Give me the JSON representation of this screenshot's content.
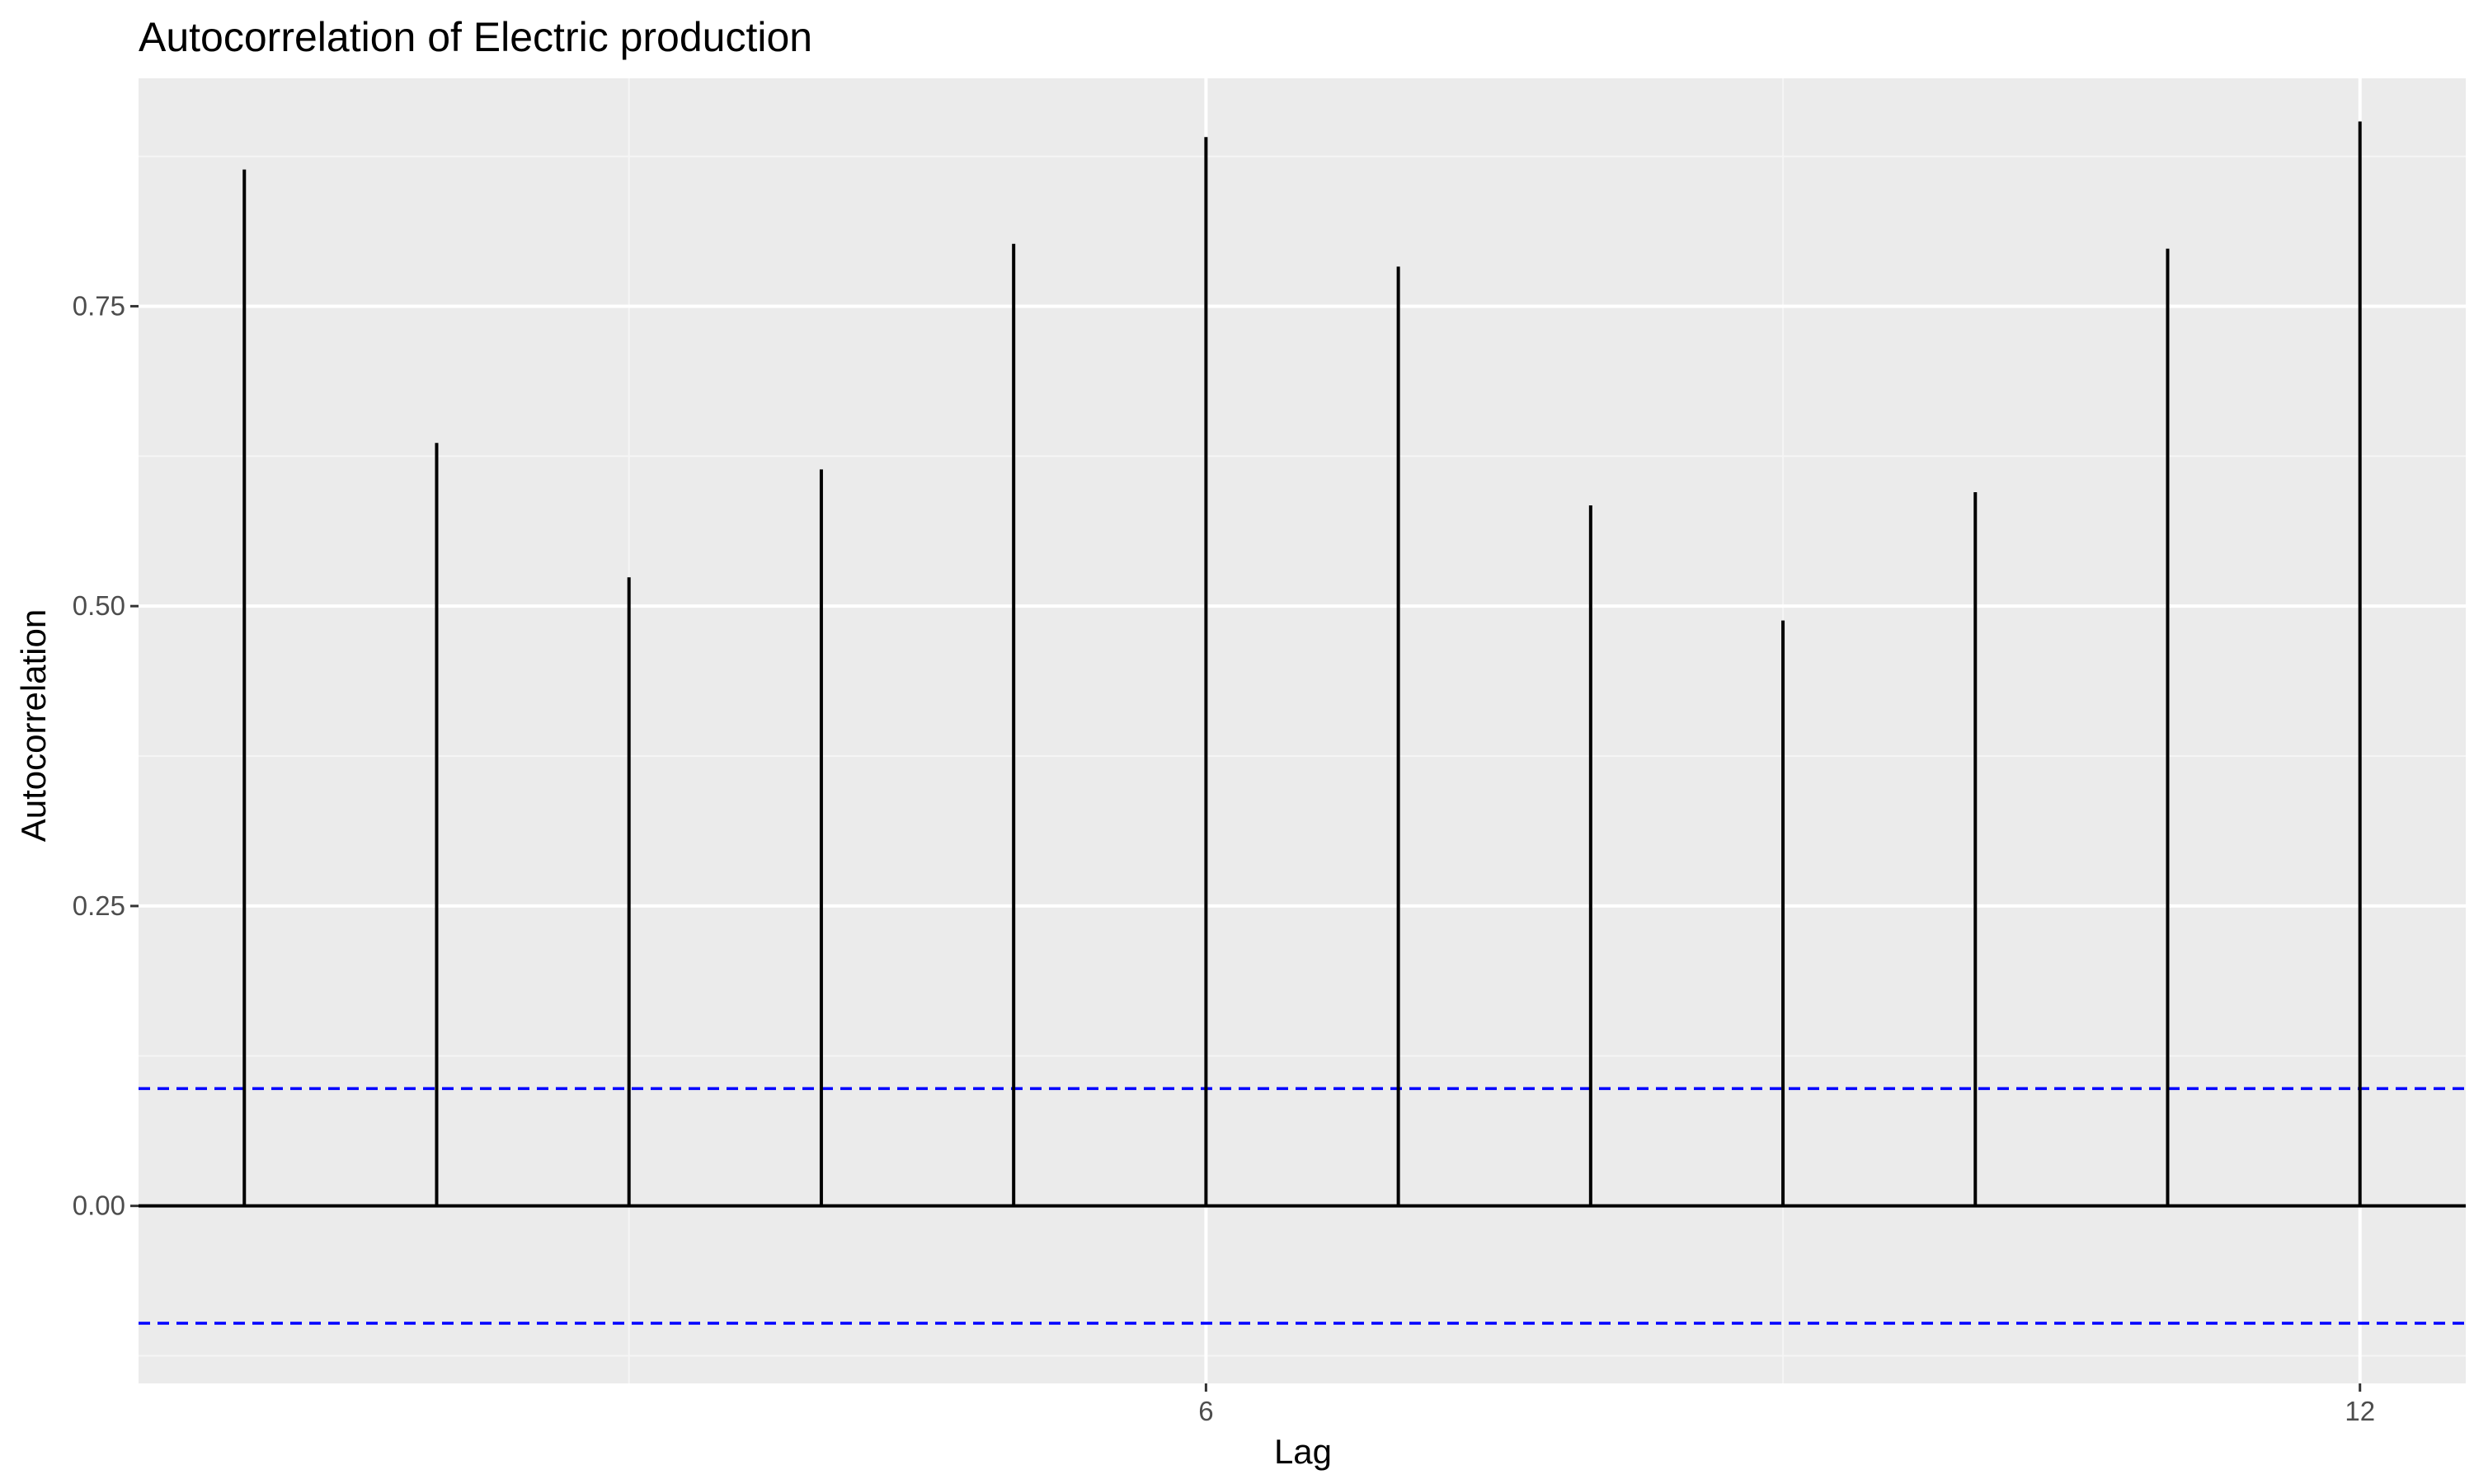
{
  "chart_data": {
    "type": "bar",
    "title": "Autocorrelation of Electric production",
    "xlabel": "Lag",
    "ylabel": "Autocorrelation",
    "x": [
      1,
      2,
      3,
      4,
      5,
      6,
      7,
      8,
      9,
      10,
      11,
      12
    ],
    "values": [
      0.864,
      0.636,
      0.524,
      0.614,
      0.802,
      0.891,
      0.783,
      0.584,
      0.488,
      0.595,
      0.798,
      0.904
    ],
    "xlim": [
      0.45,
      12.55
    ],
    "ylim": [
      -0.148,
      0.94
    ],
    "x_ticks": [
      6,
      12
    ],
    "x_tick_labels": [
      "6",
      "12"
    ],
    "y_ticks": [
      0,
      0.25,
      0.5,
      0.75
    ],
    "y_tick_labels": [
      "0.00",
      "0.25",
      "0.50",
      "0.75"
    ],
    "x_minor_ticks": [
      3,
      9
    ],
    "y_minor_ticks": [
      -0.125,
      0.125,
      0.375,
      0.625,
      0.875
    ],
    "confidence_bounds": [
      0.0978,
      -0.0978
    ],
    "grid": true,
    "colors": {
      "panel_background": "#ebebeb",
      "grid_major": "#ffffff",
      "grid_minor": "#f5f5f5",
      "bars": "#000000",
      "zero_line": "#000000",
      "confidence_line": "#0000ff",
      "tick_label": "#4d4d4d",
      "tick_mark": "#333333"
    }
  }
}
